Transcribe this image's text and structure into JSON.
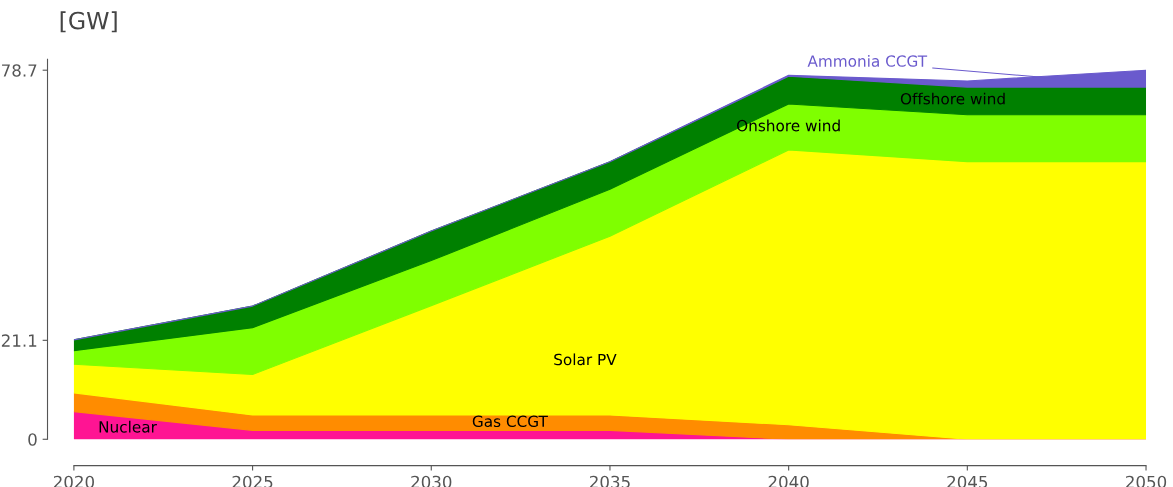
{
  "chart_data": {
    "type": "area",
    "stacked": true,
    "ylabel": "[GW]",
    "x": [
      2020,
      2025,
      2030,
      2035,
      2040,
      2045,
      2050
    ],
    "series": [
      {
        "name": "Nuclear",
        "color": "#ff1493",
        "values": [
          5.9,
          1.9,
          1.9,
          1.9,
          0,
          0,
          0
        ]
      },
      {
        "name": "Gas CCGT",
        "color": "#ff8c00",
        "values": [
          4.0,
          3.3,
          3.3,
          3.3,
          3.1,
          0,
          0
        ]
      },
      {
        "name": "Solar PV",
        "color": "#ffff00",
        "values": [
          6.1,
          8.6,
          23.3,
          38.1,
          58.6,
          59.2,
          59.2
        ]
      },
      {
        "name": "Onshore wind",
        "color": "#7fff00",
        "values": [
          2.9,
          10.0,
          9.6,
          10.0,
          9.8,
          10.0,
          10.0
        ]
      },
      {
        "name": "Offshore wind",
        "color": "#008000",
        "values": [
          2.3,
          4.6,
          6.3,
          5.9,
          5.9,
          5.9,
          5.9
        ]
      },
      {
        "name": "Ammonia CCGT",
        "color": "#6a5acd",
        "values": [
          0,
          0,
          0,
          0,
          0.2,
          1.3,
          3.6
        ]
      }
    ],
    "xlim": [
      2020,
      2050
    ],
    "xticks": [
      2020,
      2025,
      2030,
      2035,
      2040,
      2045,
      2050
    ],
    "ylim": [
      0,
      81
    ],
    "yticks": [
      0,
      21.1,
      78.7
    ],
    "grid": false,
    "legend": false
  }
}
